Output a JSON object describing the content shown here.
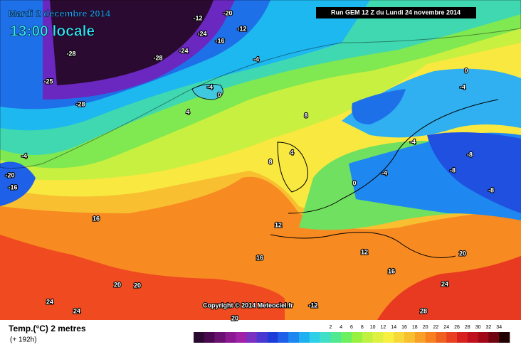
{
  "header": {
    "date": "Mardi 2 décembre 2014",
    "time": "13:00 locale",
    "run": "Run GEM 12 Z du Lundi 24 novembre 2014"
  },
  "map": {
    "contour_labels": [
      "-28",
      "-28",
      "-28",
      "-24",
      "-24",
      "-20",
      "-12",
      "-12",
      "-16",
      "-4",
      "4",
      "-4",
      "0",
      "-4",
      "-20",
      "-16",
      "8",
      "8",
      "16",
      "12",
      "20",
      "20",
      "24",
      "24",
      "16",
      "0",
      "-4",
      "-8",
      "-8",
      "-8",
      "-4",
      "0",
      "-4",
      "20",
      "24",
      "16",
      "12",
      "20",
      "28",
      "4",
      "-12",
      "-25"
    ],
    "copyright": "Copyright © 2014 Meteociel.fr"
  },
  "legend": {
    "title": "Temp.(°C) 2 metres",
    "subtitle": "(+ 192h)",
    "ticks": [
      2,
      4,
      6,
      8,
      10,
      12,
      14,
      16,
      18,
      20,
      22,
      24,
      26,
      28,
      30,
      32,
      34
    ],
    "colors": [
      "#2a0a30",
      "#4a0a50",
      "#6a1070",
      "#8a1890",
      "#a020a8",
      "#7a30c0",
      "#4a38d0",
      "#1f3cd8",
      "#1f60e8",
      "#1e88f0",
      "#1eb0f0",
      "#2ed0e8",
      "#40e0c8",
      "#50e890",
      "#6af060",
      "#98f040",
      "#c0f040",
      "#e0f040",
      "#f8f040",
      "#f8d838",
      "#f8c030",
      "#f8a028",
      "#f88020",
      "#f06020",
      "#e84020",
      "#d82020",
      "#c01020",
      "#a00818",
      "#700410",
      "#200000"
    ]
  }
}
